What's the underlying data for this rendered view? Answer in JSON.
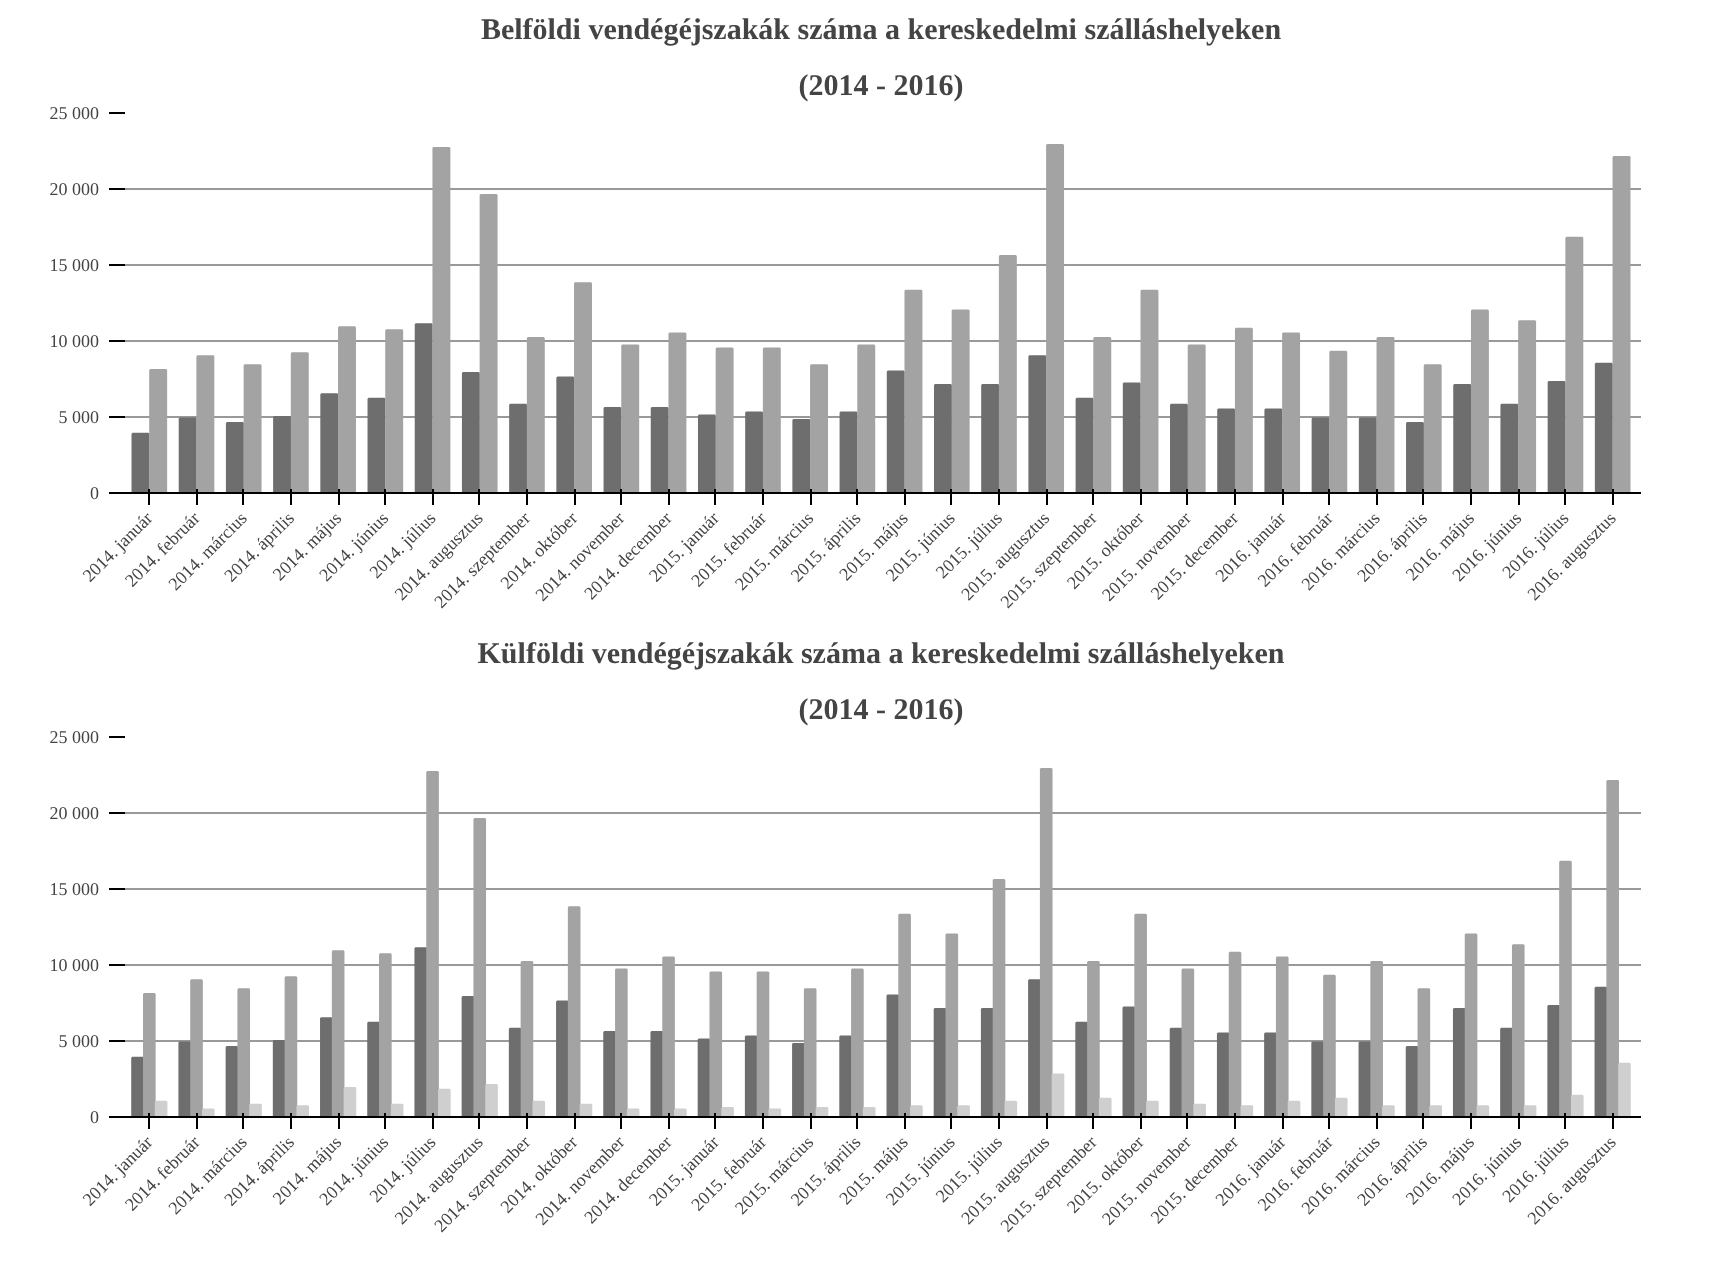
{
  "chart_data": [
    {
      "type": "bar",
      "title": "Belföldi vendégéjszakák száma a kereskedelmi szálláshelyeken",
      "subtitle": "(2014 - 2016)",
      "categories": [
        "2014. január",
        "2014. február",
        "2014. március",
        "2014. április",
        "2014. május",
        "2014. június",
        "2014. július",
        "2014. augusztus",
        "2014. szeptember",
        "2014. október",
        "2014. november",
        "2014. december",
        "2015. január",
        "2015. február",
        "2015. március",
        "2015. április",
        "2015. május",
        "2015. június",
        "2015. július",
        "2015. augusztus",
        "2015. szeptember",
        "2015. október",
        "2015. november",
        "2015. december",
        "2016. január",
        "2016. február",
        "2016. március",
        "2016. április",
        "2016. május",
        "2016. június",
        "2016. július",
        "2016. augusztus"
      ],
      "series": [
        {
          "color": "#6e6e6e",
          "values": [
            3900,
            4900,
            4600,
            5000,
            6500,
            6200,
            11100,
            7900,
            5800,
            7600,
            5600,
            5600,
            5100,
            5300,
            4800,
            5300,
            8000,
            7100,
            7100,
            9000,
            6200,
            7200,
            5800,
            5500,
            5500,
            4900,
            4900,
            4600,
            7100,
            5800,
            7300,
            8500
          ]
        },
        {
          "color": "#a3a3a3",
          "values": [
            8100,
            9000,
            8400,
            9200,
            10900,
            10700,
            22700,
            19600,
            10200,
            13800,
            9700,
            10500,
            9500,
            9500,
            8400,
            9700,
            13300,
            12000,
            15600,
            22900,
            10200,
            13300,
            9700,
            10800,
            10500,
            9300,
            10200,
            8400,
            12000,
            11300,
            16800,
            22100
          ]
        }
      ],
      "ylim": [
        0,
        25000
      ],
      "yticks": [
        {
          "value": 0,
          "label": "0"
        },
        {
          "value": 5000,
          "label": "5 000"
        },
        {
          "value": 10000,
          "label": "10 000"
        },
        {
          "value": 15000,
          "label": "15 000"
        },
        {
          "value": 20000,
          "label": "20 000"
        },
        {
          "value": 25000,
          "label": "25 000"
        }
      ],
      "grid": "y"
    },
    {
      "type": "bar",
      "title": "Külföldi vendégéjszakák száma a kereskedelmi szálláshelyeken",
      "subtitle": "(2014 - 2016)",
      "categories": [
        "2014. január",
        "2014. február",
        "2014. március",
        "2014. április",
        "2014. május",
        "2014. június",
        "2014. július",
        "2014. augusztus",
        "2014. szeptember",
        "2014. október",
        "2014. november",
        "2014. december",
        "2015. január",
        "2015. február",
        "2015. március",
        "2015. április",
        "2015. május",
        "2015. június",
        "2015. július",
        "2015. augusztus",
        "2015. szeptember",
        "2015. október",
        "2015. november",
        "2015. december",
        "2016. január",
        "2016. február",
        "2016. március",
        "2016. április",
        "2016. május",
        "2016. június",
        "2016. július",
        "2016. augusztus"
      ],
      "series": [
        {
          "color": "#6e6e6e",
          "values": [
            3900,
            4900,
            4600,
            5000,
            6500,
            6200,
            11100,
            7900,
            5800,
            7600,
            5600,
            5600,
            5100,
            5300,
            4800,
            5300,
            8000,
            7100,
            7100,
            9000,
            6200,
            7200,
            5800,
            5500,
            5500,
            4900,
            4900,
            4600,
            7100,
            5800,
            7300,
            8500
          ]
        },
        {
          "color": "#a3a3a3",
          "values": [
            8100,
            9000,
            8400,
            9200,
            10900,
            10700,
            22700,
            19600,
            10200,
            13800,
            9700,
            10500,
            9500,
            9500,
            8400,
            9700,
            13300,
            12000,
            15600,
            22900,
            10200,
            13300,
            9700,
            10800,
            10500,
            9300,
            10200,
            8400,
            12000,
            11300,
            16800,
            22100
          ]
        },
        {
          "color": "#cfcfcf",
          "values": [
            1000,
            500,
            800,
            700,
            1900,
            800,
            1800,
            2100,
            1000,
            800,
            500,
            500,
            600,
            500,
            600,
            600,
            700,
            700,
            1000,
            2800,
            1200,
            1000,
            800,
            700,
            1000,
            1200,
            700,
            700,
            700,
            700,
            1400,
            3500
          ]
        }
      ],
      "ylim": [
        0,
        25000
      ],
      "yticks": [
        {
          "value": 0,
          "label": "0"
        },
        {
          "value": 5000,
          "label": "5 000"
        },
        {
          "value": 10000,
          "label": "10 000"
        },
        {
          "value": 15000,
          "label": "15 000"
        },
        {
          "value": 20000,
          "label": "20 000"
        },
        {
          "value": 25000,
          "label": "25 000"
        }
      ],
      "grid": "y"
    }
  ]
}
